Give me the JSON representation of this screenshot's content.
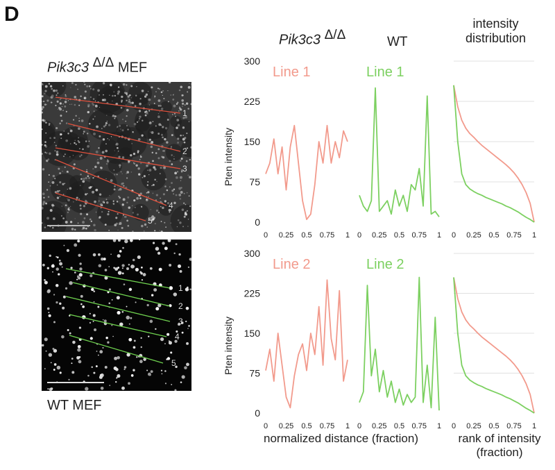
{
  "panel_label": "D",
  "top_header": {
    "ko_name": "Pik3c3",
    "ko_sup": "Δ/Δ",
    "wt_name": "WT",
    "dist_line1": "intensity",
    "dist_line2": "distribution"
  },
  "micrographs": {
    "ko_label_name": "Pik3c3",
    "ko_label_sup": "Δ/Δ",
    "ko_label_suffix": "MEF",
    "wt_label": "WT MEF",
    "line_numbers": [
      "1",
      "2",
      "3",
      "4",
      "5"
    ]
  },
  "axes": {
    "ylabel": "Pten intensity",
    "xlabel_profiles": "normalized distance (fraction)",
    "xlabel_rank_1": "rank of intensity",
    "xlabel_rank_2": "(fraction)"
  },
  "colors": {
    "ko": "#f29a8c",
    "wt": "#7cd060",
    "grid": "#d6d6d6"
  },
  "chart_data": [
    {
      "type": "line",
      "title": "Line 1",
      "x": [
        0,
        0.05,
        0.1,
        0.15,
        0.2,
        0.25,
        0.3,
        0.35,
        0.4,
        0.45,
        0.5,
        0.55,
        0.6,
        0.65,
        0.7,
        0.75,
        0.8,
        0.85,
        0.9,
        0.95,
        1
      ],
      "series": [
        {
          "values": [
            90,
            110,
            155,
            90,
            140,
            60,
            140,
            180,
            110,
            40,
            5,
            15,
            70,
            150,
            110,
            180,
            110,
            150,
            120,
            170,
            150
          ]
        }
      ],
      "xlim": [
        0,
        1
      ],
      "ylim": [
        0,
        300
      ],
      "xticks": [
        "0",
        "0.25",
        "0.5",
        "0.75",
        "1"
      ],
      "yticks": [
        "0",
        "75",
        "150",
        "225",
        "300"
      ]
    },
    {
      "type": "line",
      "title": "Line 1",
      "x": [
        0,
        0.05,
        0.1,
        0.15,
        0.2,
        0.25,
        0.3,
        0.35,
        0.4,
        0.45,
        0.5,
        0.55,
        0.6,
        0.65,
        0.7,
        0.75,
        0.8,
        0.85,
        0.9,
        0.95,
        1
      ],
      "series": [
        {
          "values": [
            50,
            30,
            20,
            40,
            250,
            20,
            30,
            40,
            15,
            60,
            30,
            50,
            20,
            70,
            60,
            100,
            30,
            235,
            15,
            20,
            10
          ]
        }
      ],
      "xlim": [
        0,
        1
      ],
      "ylim": [
        0,
        300
      ],
      "xticks": [
        "0",
        "0.25",
        "0.5",
        "0.75",
        "1"
      ]
    },
    {
      "type": "line",
      "title": "",
      "x": [
        0,
        0.05,
        0.1,
        0.15,
        0.2,
        0.25,
        0.3,
        0.35,
        0.4,
        0.45,
        0.5,
        0.55,
        0.6,
        0.65,
        0.7,
        0.75,
        0.8,
        0.85,
        0.9,
        0.95,
        1
      ],
      "series": [
        {
          "values": [
            255,
            215,
            190,
            175,
            165,
            158,
            150,
            143,
            137,
            131,
            125,
            119,
            113,
            107,
            100,
            92,
            82,
            70,
            55,
            35,
            0
          ]
        },
        {
          "values": [
            255,
            150,
            90,
            70,
            62,
            57,
            53,
            50,
            46,
            43,
            40,
            37,
            34,
            30,
            27,
            23,
            19,
            14,
            9,
            5,
            0
          ]
        }
      ],
      "xlim": [
        0,
        1
      ],
      "ylim": [
        0,
        300
      ],
      "xticks": [
        "0",
        "0.25",
        "0.5",
        "0.75",
        "1"
      ]
    },
    {
      "type": "line",
      "title": "Line 2",
      "x": [
        0,
        0.05,
        0.1,
        0.15,
        0.2,
        0.25,
        0.3,
        0.35,
        0.4,
        0.45,
        0.5,
        0.55,
        0.6,
        0.65,
        0.7,
        0.75,
        0.8,
        0.85,
        0.9,
        0.95,
        1
      ],
      "series": [
        {
          "values": [
            80,
            120,
            60,
            150,
            90,
            30,
            10,
            70,
            110,
            130,
            80,
            150,
            110,
            200,
            90,
            250,
            140,
            100,
            230,
            60,
            100
          ]
        }
      ],
      "xlim": [
        0,
        1
      ],
      "ylim": [
        0,
        300
      ],
      "xticks": [
        "0",
        "0.25",
        "0.5",
        "0.75",
        "1"
      ],
      "yticks": [
        "0",
        "75",
        "150",
        "225",
        "300"
      ]
    },
    {
      "type": "line",
      "title": "Line 2",
      "x": [
        0,
        0.05,
        0.1,
        0.15,
        0.2,
        0.25,
        0.3,
        0.35,
        0.4,
        0.45,
        0.5,
        0.55,
        0.6,
        0.65,
        0.7,
        0.75,
        0.8,
        0.85,
        0.9,
        0.95,
        1
      ],
      "series": [
        {
          "values": [
            20,
            40,
            240,
            70,
            120,
            40,
            80,
            30,
            60,
            20,
            45,
            15,
            35,
            20,
            30,
            255,
            20,
            90,
            10,
            180,
            5
          ]
        }
      ],
      "xlim": [
        0,
        1
      ],
      "ylim": [
        0,
        300
      ],
      "xticks": [
        "0",
        "0.25",
        "0.5",
        "0.75",
        "1"
      ]
    },
    {
      "type": "line",
      "title": "",
      "x": [
        0,
        0.05,
        0.1,
        0.15,
        0.2,
        0.25,
        0.3,
        0.35,
        0.4,
        0.45,
        0.5,
        0.55,
        0.6,
        0.65,
        0.7,
        0.75,
        0.8,
        0.85,
        0.9,
        0.95,
        1
      ],
      "series": [
        {
          "values": [
            255,
            215,
            190,
            175,
            165,
            158,
            150,
            143,
            137,
            131,
            125,
            119,
            113,
            107,
            100,
            92,
            82,
            70,
            55,
            35,
            0
          ]
        },
        {
          "values": [
            255,
            150,
            90,
            70,
            62,
            57,
            53,
            50,
            46,
            43,
            40,
            37,
            34,
            30,
            27,
            23,
            19,
            14,
            9,
            5,
            0
          ]
        }
      ],
      "xlim": [
        0,
        1
      ],
      "ylim": [
        0,
        300
      ],
      "xticks": [
        "0",
        "0.25",
        "0.5",
        "0.75",
        "1"
      ]
    }
  ]
}
